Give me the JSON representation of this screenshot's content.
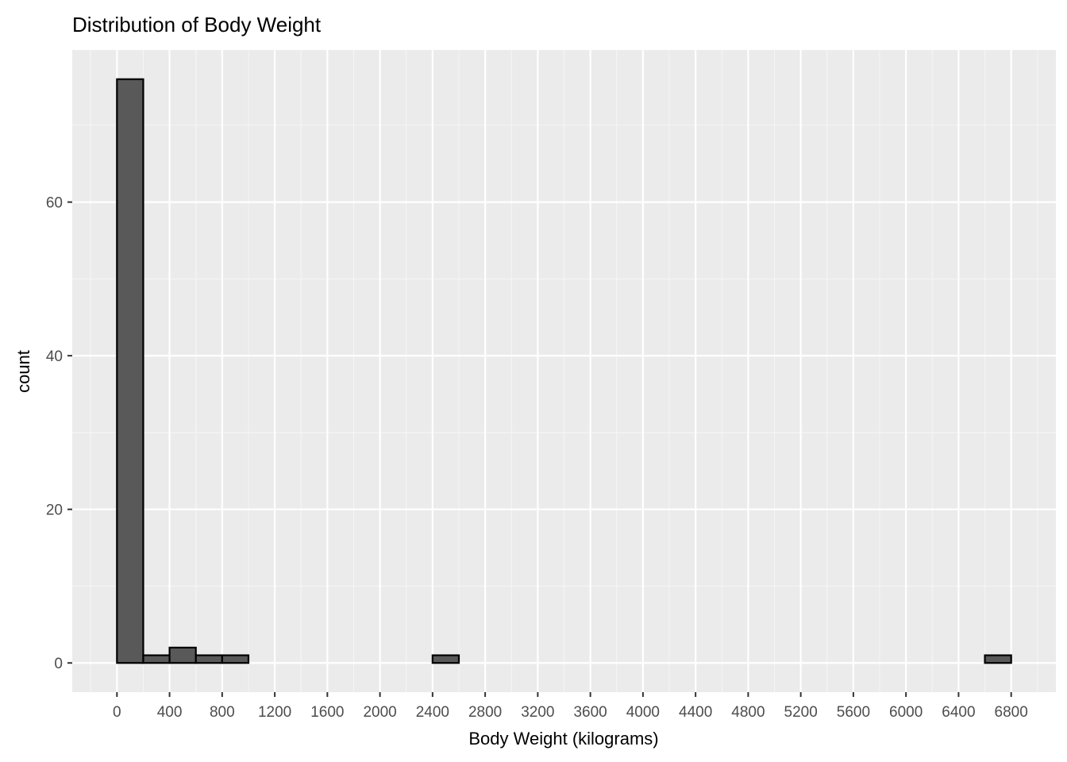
{
  "chart_data": {
    "type": "bar",
    "title": "Distribution of Body Weight",
    "xlabel": "Body Weight (kilograms)",
    "ylabel": "count",
    "bin_width": 200,
    "bins": [
      {
        "start": 0,
        "end": 200,
        "count": 76
      },
      {
        "start": 200,
        "end": 400,
        "count": 1
      },
      {
        "start": 400,
        "end": 600,
        "count": 2
      },
      {
        "start": 600,
        "end": 800,
        "count": 1
      },
      {
        "start": 800,
        "end": 1000,
        "count": 1
      },
      {
        "start": 1000,
        "end": 1200,
        "count": 0
      },
      {
        "start": 1200,
        "end": 1400,
        "count": 0
      },
      {
        "start": 1400,
        "end": 1600,
        "count": 0
      },
      {
        "start": 1600,
        "end": 1800,
        "count": 0
      },
      {
        "start": 1800,
        "end": 2000,
        "count": 0
      },
      {
        "start": 2000,
        "end": 2200,
        "count": 0
      },
      {
        "start": 2200,
        "end": 2400,
        "count": 0
      },
      {
        "start": 2400,
        "end": 2600,
        "count": 1
      },
      {
        "start": 2600,
        "end": 2800,
        "count": 0
      },
      {
        "start": 2800,
        "end": 3000,
        "count": 0
      },
      {
        "start": 3000,
        "end": 3200,
        "count": 0
      },
      {
        "start": 3200,
        "end": 3400,
        "count": 0
      },
      {
        "start": 3400,
        "end": 3600,
        "count": 0
      },
      {
        "start": 3600,
        "end": 3800,
        "count": 0
      },
      {
        "start": 3800,
        "end": 4000,
        "count": 0
      },
      {
        "start": 4000,
        "end": 4200,
        "count": 0
      },
      {
        "start": 4200,
        "end": 4400,
        "count": 0
      },
      {
        "start": 4400,
        "end": 4600,
        "count": 0
      },
      {
        "start": 4600,
        "end": 4800,
        "count": 0
      },
      {
        "start": 4800,
        "end": 5000,
        "count": 0
      },
      {
        "start": 5000,
        "end": 5200,
        "count": 0
      },
      {
        "start": 5200,
        "end": 5400,
        "count": 0
      },
      {
        "start": 5400,
        "end": 5600,
        "count": 0
      },
      {
        "start": 5600,
        "end": 5800,
        "count": 0
      },
      {
        "start": 5800,
        "end": 6000,
        "count": 0
      },
      {
        "start": 6000,
        "end": 6200,
        "count": 0
      },
      {
        "start": 6200,
        "end": 6400,
        "count": 0
      },
      {
        "start": 6400,
        "end": 6600,
        "count": 0
      },
      {
        "start": 6600,
        "end": 6800,
        "count": 1
      }
    ],
    "x_ticks": [
      0,
      400,
      800,
      1200,
      1600,
      2000,
      2400,
      2800,
      3200,
      3600,
      4000,
      4400,
      4800,
      5200,
      5600,
      6000,
      6400,
      6800
    ],
    "y_ticks": [
      0,
      20,
      40,
      60
    ],
    "xlim": [
      -340,
      7140
    ],
    "ylim": [
      -3.8,
      79.8
    ],
    "grid": true,
    "colors": {
      "panel_background": "#ebebeb",
      "grid_major": "#ffffff",
      "grid_minor": "#f5f5f5",
      "bar_fill": "#595959",
      "bar_outline": "#000000",
      "tick_label": "#4d4d4d",
      "title": "#000000"
    }
  }
}
